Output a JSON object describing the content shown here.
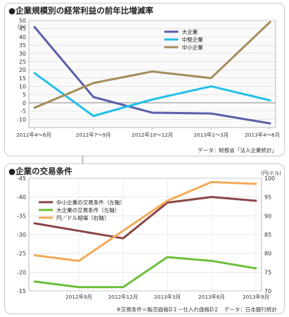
{
  "chart_data": [
    {
      "type": "line",
      "title": "●企業規模別の経常利益の前年比増減率",
      "ylabel": "(%)",
      "ylim": [
        -15,
        50
      ],
      "yticks": [
        -10,
        -5,
        0,
        5,
        10,
        15,
        20,
        25,
        30,
        35,
        40,
        45,
        50
      ],
      "grid": true,
      "legend_position": "top-right",
      "x_tick_labels": [
        "2012年4～6月",
        "2012年7～9月",
        "2012年10～12月",
        "2013年1～3月",
        "2013年4～6月"
      ],
      "series": [
        {
          "name": "大企業",
          "color": "#5a5ea8",
          "values": [
            46,
            3.5,
            -6,
            -6.5,
            -12.5
          ]
        },
        {
          "name": "中堅企業",
          "color": "#22c0e8",
          "values": [
            18,
            -8,
            2,
            10,
            1.5
          ]
        },
        {
          "name": "中小企業",
          "color": "#a48d5c",
          "values": [
            -3,
            12,
            19,
            15,
            49
          ]
        }
      ],
      "source": "データ：財務省「法人企業統計」"
    },
    {
      "type": "line",
      "title": "●企業の交易条件",
      "y_left_lim": [
        -15,
        -45
      ],
      "y_left_ticks": [
        -15,
        -20,
        -25,
        -30,
        -35,
        -40,
        -45
      ],
      "y_right_label": "(円/ドル)",
      "y_right_lim": [
        70,
        100
      ],
      "y_right_ticks": [
        70,
        75,
        80,
        85,
        90,
        95,
        100
      ],
      "grid": true,
      "legend_position": "top-left",
      "x_tick_labels": [
        "2012年9月",
        "2012年12月",
        "2013年3月",
        "2013年6月",
        "2013年9月"
      ],
      "series": [
        {
          "name": "中小企業の交易条件（左軸）",
          "axis": "left",
          "color": "#8b4646",
          "x": [
            0,
            1,
            2,
            3,
            4,
            5
          ],
          "values": [
            -33,
            -31,
            -29,
            -38.5,
            -40,
            -39
          ]
        },
        {
          "name": "大企業の交易条件（左軸）",
          "axis": "left",
          "color": "#6cbf3a",
          "x": [
            0,
            1,
            2,
            3,
            4,
            5
          ],
          "values": [
            -17.5,
            -16,
            -16,
            -24,
            -23,
            -21
          ]
        },
        {
          "name": "円／ドル相場（右軸）",
          "axis": "right",
          "color": "#f4a957",
          "x": [
            0,
            1,
            2,
            3,
            4,
            5
          ],
          "values": [
            79.5,
            78,
            86,
            94,
            99,
            98.5
          ]
        }
      ],
      "source": "※交易条件＝販売価格DＩ－仕入れ価格DＩ　データ：日本銀行統計"
    }
  ]
}
